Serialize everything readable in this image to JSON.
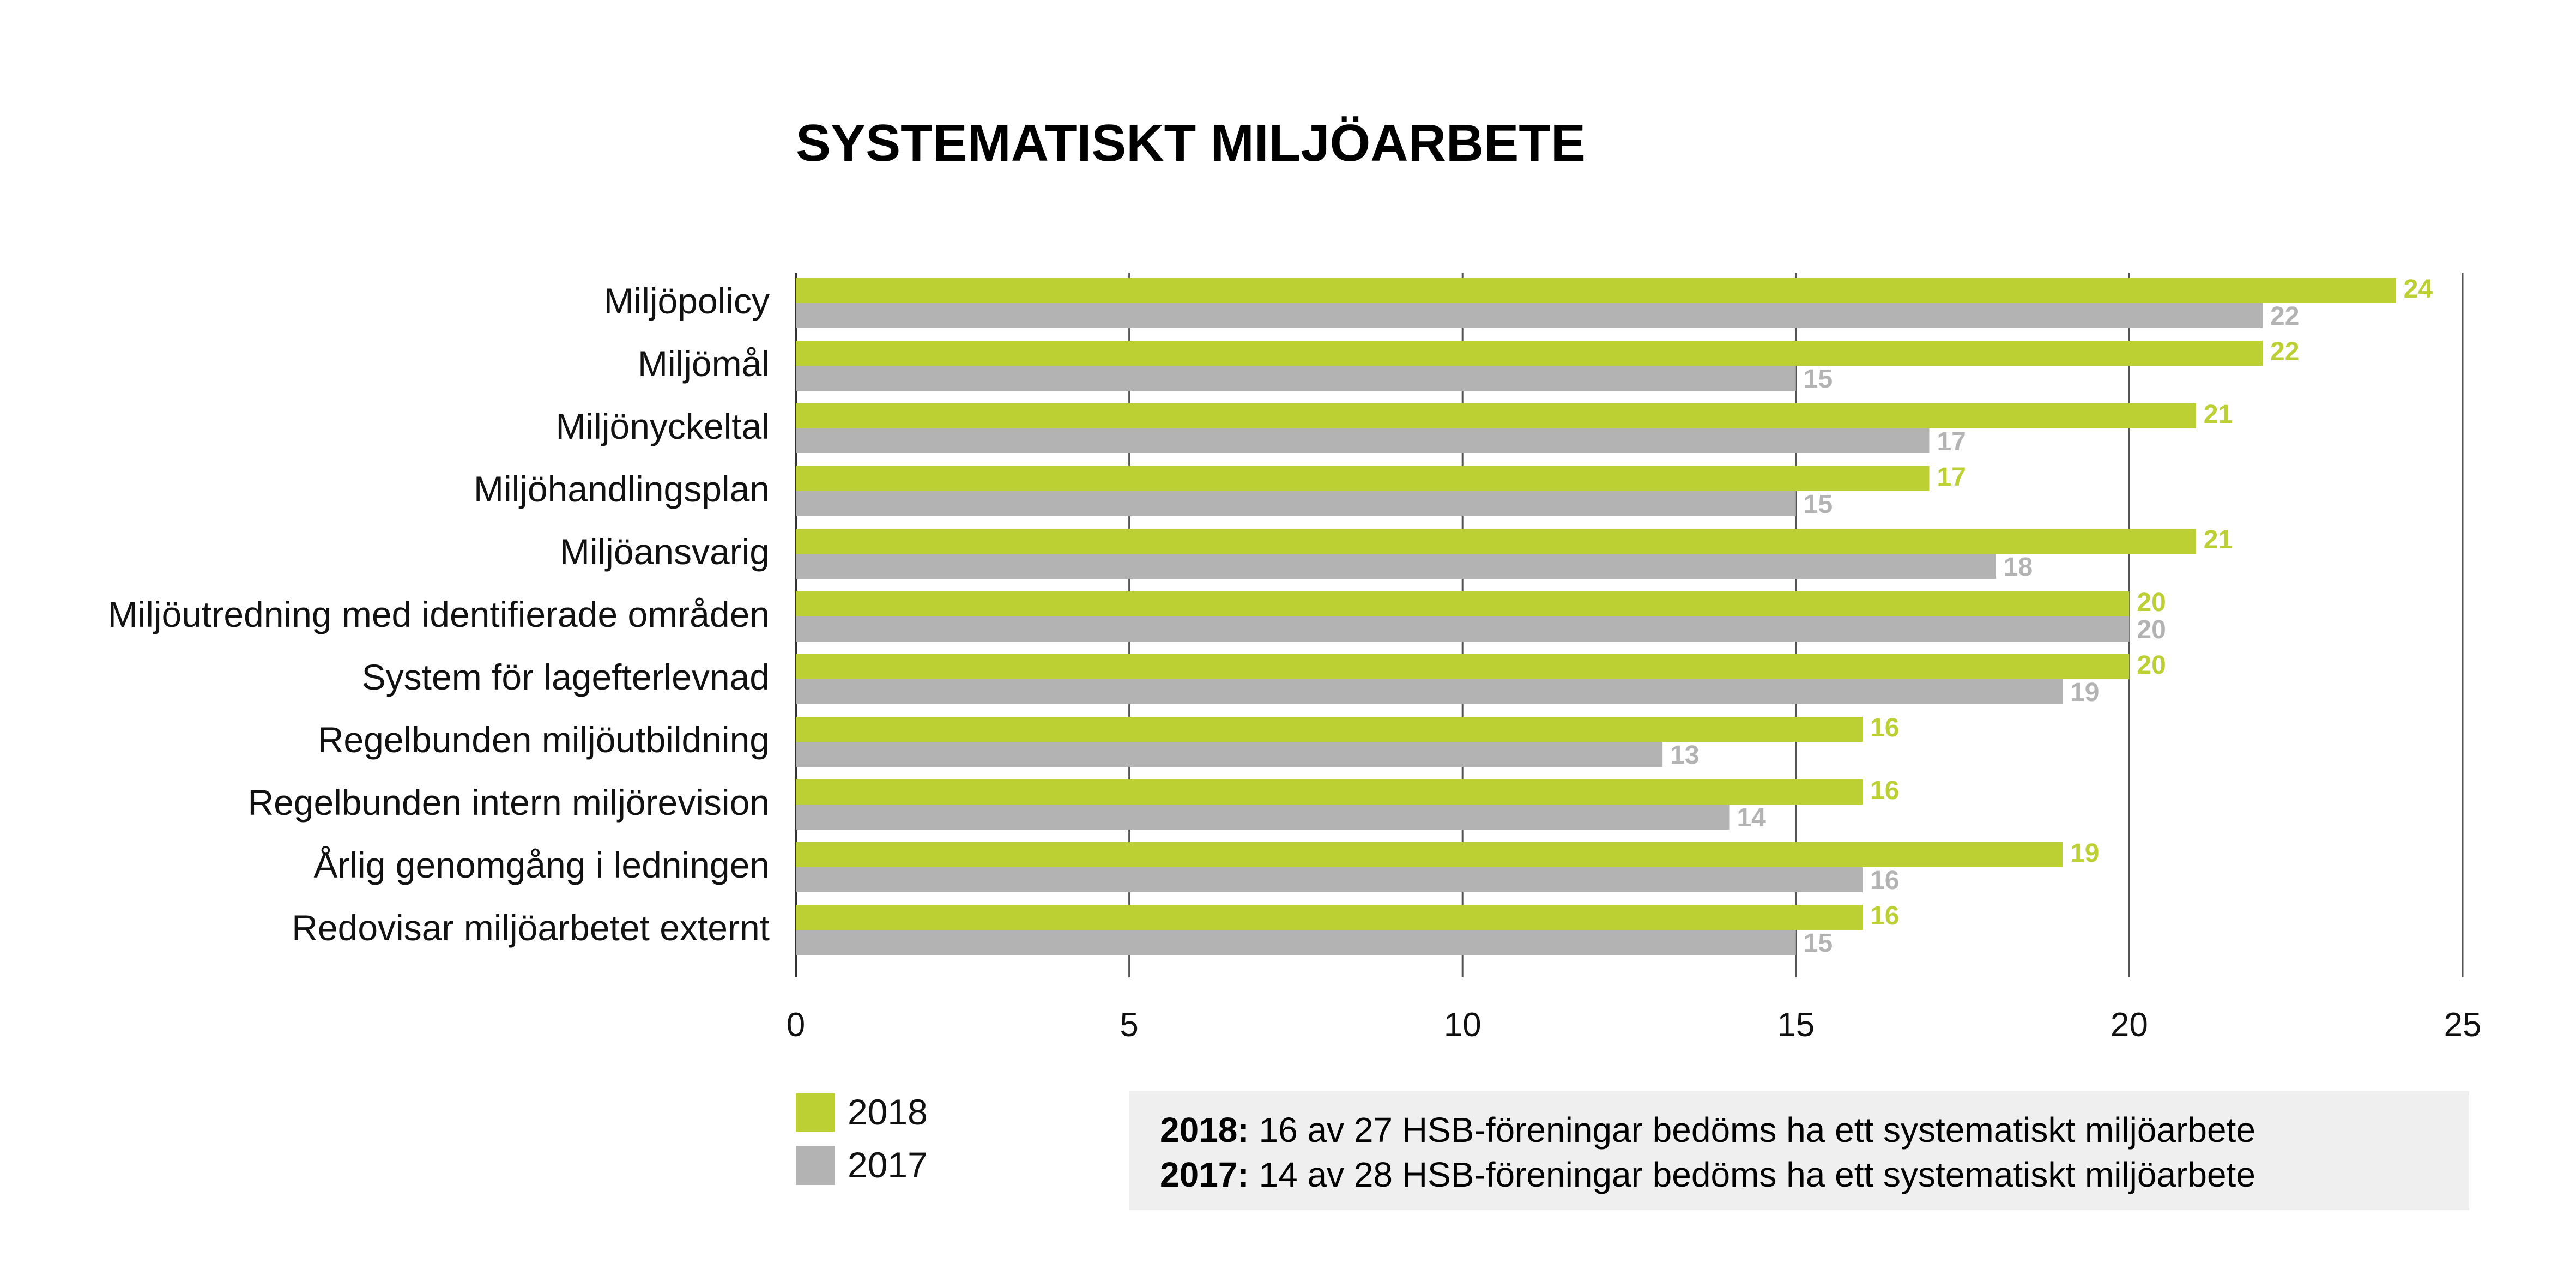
{
  "colors": {
    "series_2018": "#bccf33",
    "series_2017": "#b3b3b3",
    "note_bg": "#efefef",
    "gridline": "#555555",
    "axis": "#333333"
  },
  "chart_data": {
    "type": "bar",
    "orientation": "horizontal",
    "title": "SYSTEMATISKT MILJÖARBETE",
    "categories": [
      "Miljöpolicy",
      "Miljömål",
      "Miljönyckeltal",
      "Miljöhandlingsplan",
      "Miljöansvarig",
      "Miljöutredning med identifierade områden",
      "System för lagefterlevnad",
      "Regelbunden miljöutbildning",
      "Regelbunden intern miljörevision",
      "Årlig genomgång i ledningen",
      "Redovisar miljöarbetet externt"
    ],
    "series": [
      {
        "name": "2018",
        "values": [
          24,
          22,
          21,
          17,
          21,
          20,
          20,
          16,
          16,
          19,
          16
        ]
      },
      {
        "name": "2017",
        "values": [
          22,
          15,
          17,
          15,
          18,
          20,
          19,
          13,
          14,
          16,
          15
        ]
      }
    ],
    "xlim": [
      0,
      25
    ],
    "xticks": [
      0,
      5,
      10,
      15,
      20,
      25
    ],
    "grid": "vertical",
    "legend": "bottom-left"
  },
  "notes": [
    {
      "bold": "2018:",
      "text": " 16 av 27 HSB-föreningar bedöms ha ett systematiskt miljöarbete"
    },
    {
      "bold": "2017:",
      "text": " 14 av 28 HSB-föreningar bedöms ha ett systematiskt miljöarbete"
    }
  ]
}
